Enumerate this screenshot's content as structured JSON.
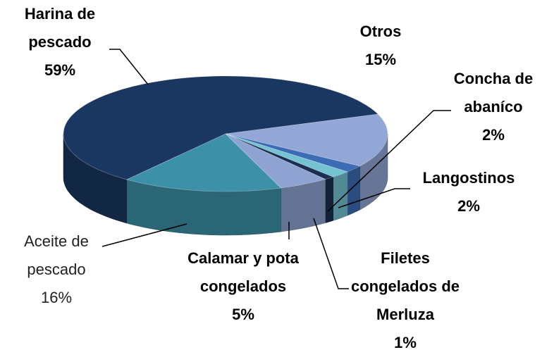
{
  "chart_data": {
    "type": "pie3d",
    "categories": [
      "Otros",
      "Concha de abaníco",
      "Langostinos",
      "Filetes congelados de Merluza",
      "Calamar y pota congelados",
      "Aceite de pescado",
      "Harina de pescado"
    ],
    "values": [
      15,
      2,
      2,
      1,
      5,
      16,
      59
    ],
    "value_labels": [
      "15%",
      "2%",
      "2%",
      "1%",
      "5%",
      "16%",
      "59%"
    ],
    "colors": [
      "#93a7d6",
      "#3c6cb4",
      "#74c3d3",
      "#1b2f52",
      "#8fa3d2",
      "#3c91a8",
      "#1a3761"
    ]
  }
}
